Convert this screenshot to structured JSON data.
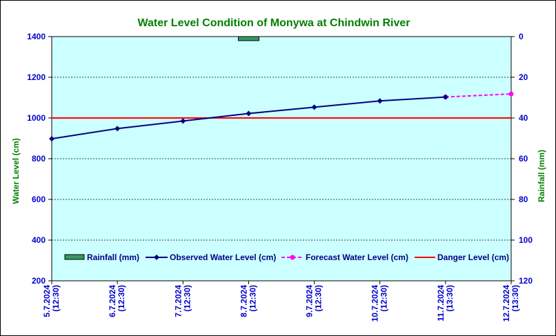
{
  "chart_data": {
    "type": "line",
    "title": "Water Level Condition of Monywa at Chindwin River",
    "ylabel": "Water Level (cm)",
    "y2label": "Rainfall (mm)",
    "ylim": [
      200,
      1400
    ],
    "yticks": [
      "200",
      "400",
      "600",
      "800",
      "1000",
      "1200",
      "1400"
    ],
    "y2lim": [
      0,
      120
    ],
    "y2reversed": true,
    "y2ticks": [
      "0",
      "20",
      "40",
      "60",
      "80",
      "100",
      "120"
    ],
    "grid": "horizontal dashed",
    "legend_placement": "bottom-inside",
    "x": [
      [
        "5.7.2024",
        "(12:30)"
      ],
      [
        "6.7.2024",
        "(12:30)"
      ],
      [
        "7.7.2024",
        "(12:30)"
      ],
      [
        "8.7.2024",
        "(12:30)"
      ],
      [
        "9.7.2024",
        "(12:30)"
      ],
      [
        "10.7.2024",
        "(12:30)"
      ],
      [
        "11.7.2024",
        "(13:30)"
      ],
      [
        "12.7.2024",
        "(13:30)"
      ]
    ],
    "series": [
      {
        "name": "Rainfall (mm)",
        "type": "bar",
        "axis": "right",
        "color": "#339966",
        "values": [
          0,
          0,
          0,
          2,
          0,
          0,
          0,
          0
        ]
      },
      {
        "name": "Observed Water Level (cm)",
        "type": "line",
        "axis": "left",
        "color": "#000080",
        "values": [
          898,
          948,
          985,
          1022,
          1053,
          1084,
          1103,
          null
        ]
      },
      {
        "name": "Forecast Water Level (cm)",
        "type": "line",
        "axis": "left",
        "dashed": true,
        "color": "#ff00ff",
        "values": [
          null,
          null,
          null,
          null,
          null,
          null,
          1103,
          1118
        ]
      },
      {
        "name": "Danger Level (cm)",
        "type": "hline",
        "axis": "left",
        "color": "#ff0000",
        "value": 1000
      }
    ]
  },
  "colors": {
    "plot_bg": "#ccffff",
    "title": "#008000",
    "ticks": "#0000cc",
    "axis_label": "#008000"
  }
}
